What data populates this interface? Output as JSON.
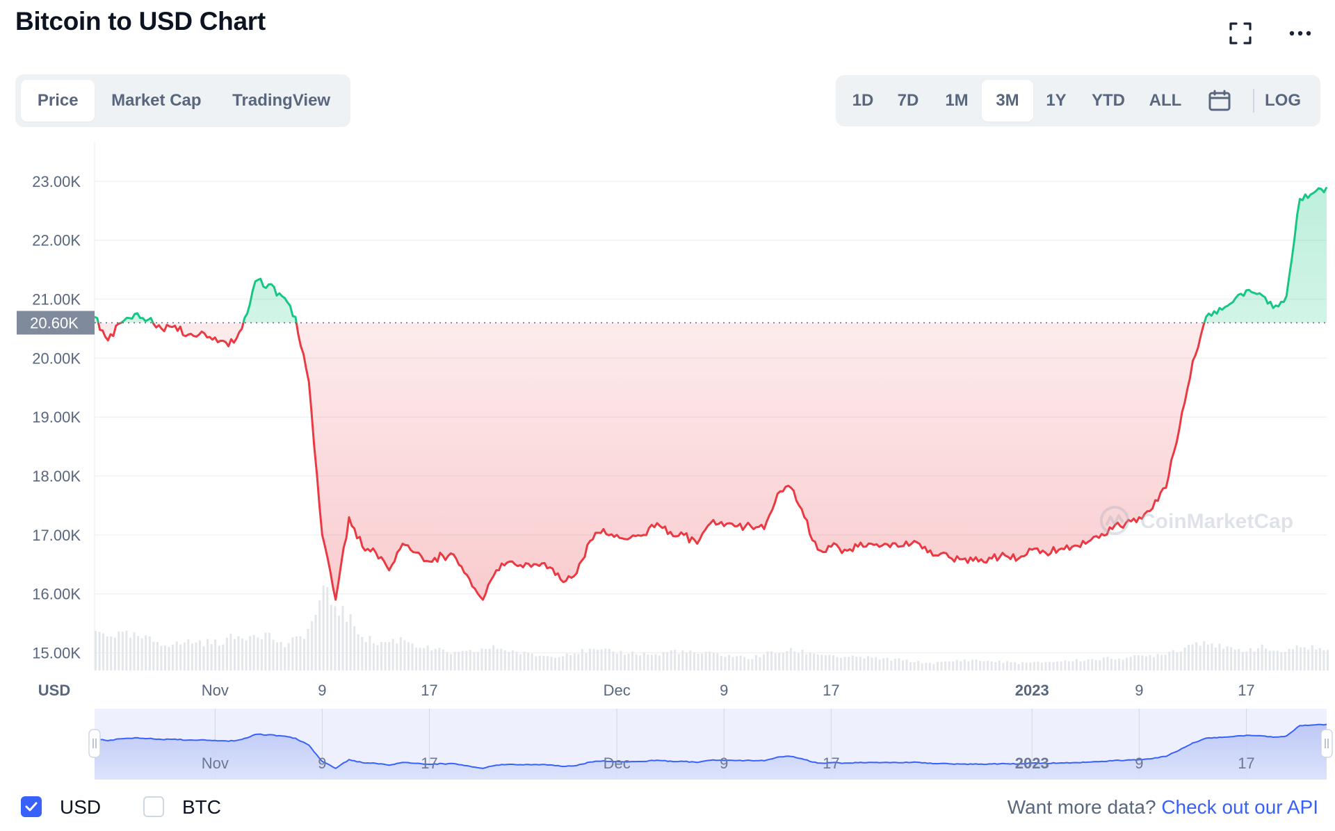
{
  "title": "Bitcoin to USD Chart",
  "icons": {
    "fullscreen": "fullscreen-icon",
    "more": "more-horizontal-icon",
    "calendar": "calendar-icon"
  },
  "tabs": [
    {
      "label": "Price",
      "active": true
    },
    {
      "label": "Market Cap",
      "active": false
    },
    {
      "label": "TradingView",
      "active": false
    }
  ],
  "ranges": [
    {
      "label": "1D",
      "active": false
    },
    {
      "label": "7D",
      "active": false
    },
    {
      "label": "1M",
      "active": false
    },
    {
      "label": "3M",
      "active": true
    },
    {
      "label": "1Y",
      "active": false
    },
    {
      "label": "YTD",
      "active": false
    },
    {
      "label": "ALL",
      "active": false
    }
  ],
  "log_label": "LOG",
  "watermark": "CoinMarketCap",
  "currency_axis_label": "USD",
  "colors": {
    "up": "#16c784",
    "down": "#ea3943",
    "accent": "#3861fb",
    "baseline_badge": "#808a9d"
  },
  "chart_data": {
    "type": "line",
    "y_unit": "USD",
    "ylim": [
      14700,
      23600
    ],
    "yticks": [
      15000,
      16000,
      17000,
      18000,
      19000,
      20000,
      21000,
      22000,
      23000
    ],
    "ytick_labels": [
      "15.00K",
      "16.00K",
      "17.00K",
      "18.00K",
      "19.00K",
      "20.00K",
      "21.00K",
      "22.00K",
      "23.00K"
    ],
    "baseline": 20600,
    "baseline_label": "20.60K",
    "xlim": [
      "2022-10-23",
      "2023-01-23"
    ],
    "xticks": [
      {
        "date": "2022-11-01",
        "label": "Nov",
        "bold": false
      },
      {
        "date": "2022-11-09",
        "label": "9",
        "bold": false
      },
      {
        "date": "2022-11-17",
        "label": "17",
        "bold": false
      },
      {
        "date": "2022-12-01",
        "label": "Dec",
        "bold": false
      },
      {
        "date": "2022-12-09",
        "label": "9",
        "bold": false
      },
      {
        "date": "2022-12-17",
        "label": "17",
        "bold": false
      },
      {
        "date": "2023-01-01",
        "label": "2023",
        "bold": true
      },
      {
        "date": "2023-01-09",
        "label": "9",
        "bold": false
      },
      {
        "date": "2023-01-17",
        "label": "17",
        "bold": false
      }
    ],
    "series": [
      {
        "x": [
          "2022-10-23",
          "2022-10-24",
          "2022-10-25",
          "2022-10-26",
          "2022-10-27",
          "2022-10-28",
          "2022-10-29",
          "2022-10-30",
          "2022-10-31",
          "2022-11-01",
          "2022-11-02",
          "2022-11-03",
          "2022-11-04",
          "2022-11-05",
          "2022-11-06",
          "2022-11-07",
          "2022-11-08",
          "2022-11-09",
          "2022-11-10",
          "2022-11-11",
          "2022-11-12",
          "2022-11-13",
          "2022-11-14",
          "2022-11-15",
          "2022-11-16",
          "2022-11-17",
          "2022-11-18",
          "2022-11-19",
          "2022-11-20",
          "2022-11-21",
          "2022-11-22",
          "2022-11-23",
          "2022-11-24",
          "2022-11-25",
          "2022-11-26",
          "2022-11-27",
          "2022-11-28",
          "2022-11-29",
          "2022-11-30",
          "2022-12-01",
          "2022-12-02",
          "2022-12-03",
          "2022-12-04",
          "2022-12-05",
          "2022-12-06",
          "2022-12-07",
          "2022-12-08",
          "2022-12-09",
          "2022-12-10",
          "2022-12-11",
          "2022-12-12",
          "2022-12-13",
          "2022-12-14",
          "2022-12-15",
          "2022-12-16",
          "2022-12-17",
          "2022-12-18",
          "2022-12-19",
          "2022-12-20",
          "2022-12-21",
          "2022-12-22",
          "2022-12-23",
          "2022-12-24",
          "2022-12-25",
          "2022-12-26",
          "2022-12-27",
          "2022-12-28",
          "2022-12-29",
          "2022-12-30",
          "2022-12-31",
          "2023-01-01",
          "2023-01-02",
          "2023-01-03",
          "2023-01-04",
          "2023-01-05",
          "2023-01-06",
          "2023-01-07",
          "2023-01-08",
          "2023-01-09",
          "2023-01-10",
          "2023-01-11",
          "2023-01-12",
          "2023-01-13",
          "2023-01-14",
          "2023-01-15",
          "2023-01-16",
          "2023-01-17",
          "2023-01-18",
          "2023-01-19",
          "2023-01-20",
          "2023-01-21",
          "2023-01-22",
          "2023-01-23"
        ],
        "y": [
          20700,
          20300,
          20600,
          20750,
          20650,
          20500,
          20550,
          20400,
          20450,
          20350,
          20200,
          20500,
          21300,
          21250,
          21050,
          20700,
          19600,
          17000,
          15900,
          17300,
          16800,
          16700,
          16400,
          16850,
          16700,
          16550,
          16650,
          16600,
          16250,
          15900,
          16400,
          16550,
          16450,
          16500,
          16450,
          16200,
          16350,
          16900,
          17100,
          17000,
          16950,
          17000,
          17200,
          17050,
          17000,
          16850,
          17200,
          17150,
          17150,
          17150,
          17100,
          17700,
          17800,
          17300,
          16750,
          16800,
          16750,
          16800,
          16850,
          16850,
          16800,
          16850,
          16800,
          16650,
          16600,
          16600,
          16550,
          16600,
          16650,
          16600,
          16750,
          16700,
          16750,
          16800,
          16850,
          16950,
          17100,
          17200,
          17300,
          17450,
          17800,
          18800,
          19950,
          20700,
          20850,
          20950,
          21150,
          21100,
          20850,
          21050,
          22700,
          22800,
          22900
        ]
      }
    ],
    "volume_relative": [
      0.5,
      0.48,
      0.46,
      0.44,
      0.4,
      0.36,
      0.34,
      0.38,
      0.37,
      0.36,
      0.42,
      0.44,
      0.5,
      0.46,
      0.32,
      0.4,
      0.55,
      1.0,
      0.85,
      0.65,
      0.45,
      0.35,
      0.38,
      0.42,
      0.33,
      0.28,
      0.25,
      0.22,
      0.24,
      0.28,
      0.3,
      0.26,
      0.22,
      0.2,
      0.18,
      0.22,
      0.24,
      0.26,
      0.25,
      0.24,
      0.23,
      0.22,
      0.2,
      0.26,
      0.24,
      0.22,
      0.22,
      0.2,
      0.18,
      0.16,
      0.22,
      0.24,
      0.26,
      0.24,
      0.22,
      0.2,
      0.16,
      0.18,
      0.16,
      0.15,
      0.14,
      0.12,
      0.1,
      0.1,
      0.12,
      0.14,
      0.13,
      0.12,
      0.11,
      0.1,
      0.1,
      0.11,
      0.12,
      0.13,
      0.14,
      0.15,
      0.16,
      0.17,
      0.18,
      0.2,
      0.24,
      0.28,
      0.36,
      0.4,
      0.3,
      0.26,
      0.28,
      0.3,
      0.26,
      0.24,
      0.32,
      0.3,
      0.26
    ],
    "navigator_xticks": [
      "Nov",
      "9",
      "17",
      "Dec",
      "9",
      "17",
      "2023",
      "9",
      "17"
    ]
  },
  "footer": {
    "usd_label": "USD",
    "usd_checked": true,
    "btc_label": "BTC",
    "btc_checked": false,
    "more_data_text": "Want more data?",
    "api_link_text": "Check out our API"
  }
}
